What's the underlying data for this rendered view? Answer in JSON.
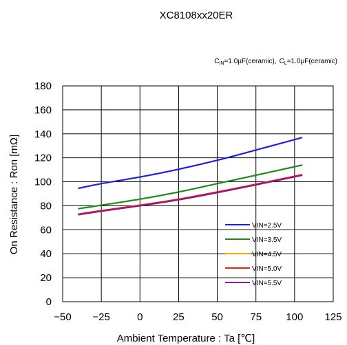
{
  "chart_data": {
    "type": "line",
    "title": "XC8108xx20ER",
    "conditions": {
      "cin_prefix": "C",
      "cin_sub": "IN",
      "cin_value": "=1.0μF(ceramic),",
      "cl_prefix": "C",
      "cl_sub": "L",
      "cl_value": "=1.0μF(ceramic)"
    },
    "xlabel": "Ambient Temperature : Ta [℃]",
    "ylabel": "On Resistance : Ron [mΩ]",
    "xlim": [
      -50,
      125
    ],
    "ylim": [
      0,
      180
    ],
    "xticks": [
      "-50",
      "-25",
      "0",
      "25",
      "50",
      "75",
      "100",
      "125"
    ],
    "yticks": [
      "0",
      "20",
      "40",
      "60",
      "80",
      "100",
      "120",
      "140",
      "160",
      "180"
    ],
    "grid": true,
    "legend_position": "bottom-right",
    "x": [
      -40,
      -25,
      0,
      25,
      50,
      75,
      105
    ],
    "series": [
      {
        "name": "VIN=2.5V",
        "color": "#1f1fe0",
        "values": [
          94.5,
          98.5,
          104,
          110.5,
          118,
          126.5,
          137
        ]
      },
      {
        "name": "VIN=3.5V",
        "color": "#1a8a1a",
        "values": [
          77.5,
          80.5,
          85.5,
          91.5,
          98.5,
          105.5,
          114
        ]
      },
      {
        "name": "VIN=4.5V",
        "color": "#ffa500",
        "values": [
          72.5,
          75.5,
          80,
          85,
          91,
          97.5,
          105.5
        ]
      },
      {
        "name": "VIN=5.0V",
        "color": "#ff1a00",
        "values": [
          73,
          76,
          80.5,
          85.5,
          91.5,
          98,
          106
        ]
      },
      {
        "name": "VIN=5.5V",
        "color": "#8b1a8b",
        "values": [
          72.5,
          75.5,
          80,
          85,
          91,
          97.5,
          105.5
        ]
      }
    ]
  }
}
